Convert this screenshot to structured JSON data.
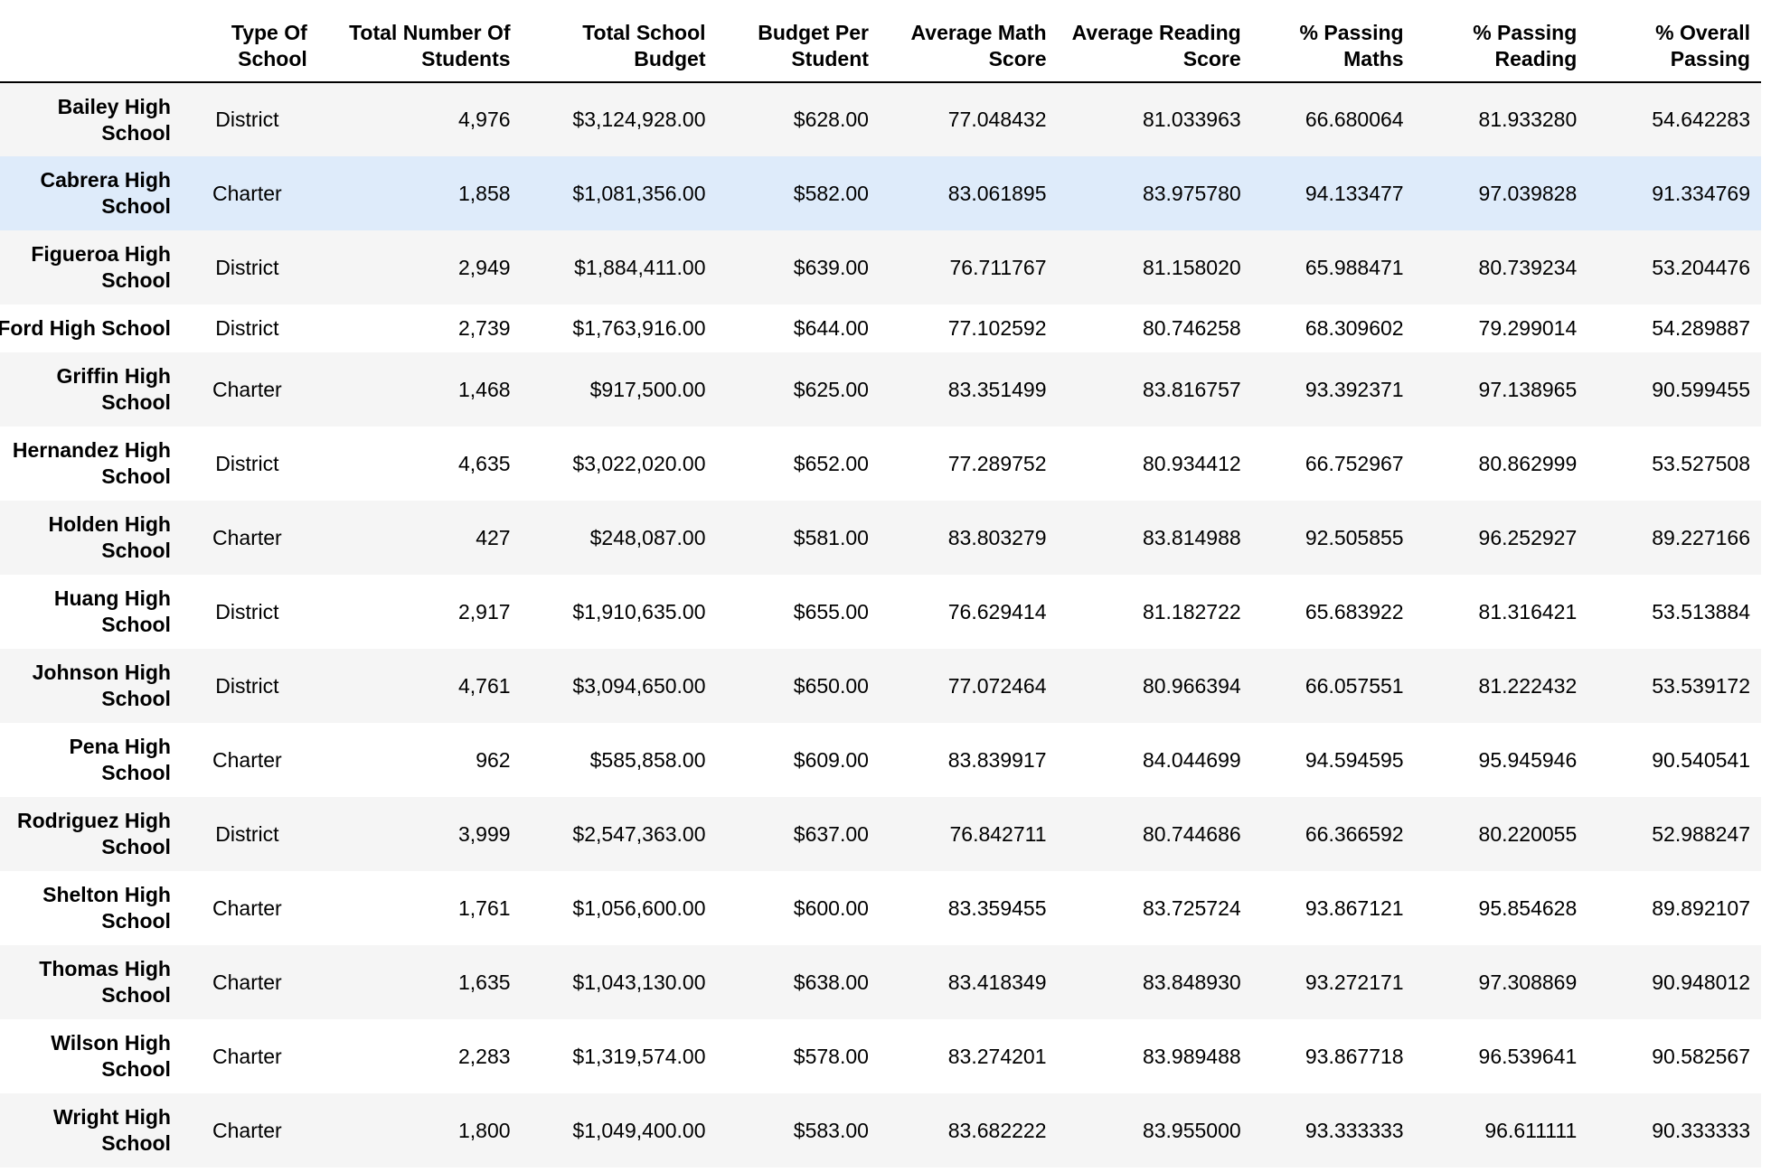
{
  "table": {
    "columns": [
      "",
      "Type Of School",
      "Total Number Of Students",
      "Total School Budget",
      "Budget Per Student",
      "Average Math Score",
      "Average Reading Score",
      "% Passing Maths",
      "% Passing Reading",
      "% Overall Passing"
    ],
    "rows": [
      {
        "school": "Bailey High School",
        "type": "District",
        "students": "4,976",
        "budget": "$3,124,928.00",
        "per_student": "$628.00",
        "math": "77.048432",
        "reading": "81.033963",
        "pass_math": "66.680064",
        "pass_reading": "81.933280",
        "overall": "54.642283"
      },
      {
        "school": "Cabrera High School",
        "type": "Charter",
        "students": "1,858",
        "budget": "$1,081,356.00",
        "per_student": "$582.00",
        "math": "83.061895",
        "reading": "83.975780",
        "pass_math": "94.133477",
        "pass_reading": "97.039828",
        "overall": "91.334769"
      },
      {
        "school": "Figueroa High School",
        "type": "District",
        "students": "2,949",
        "budget": "$1,884,411.00",
        "per_student": "$639.00",
        "math": "76.711767",
        "reading": "81.158020",
        "pass_math": "65.988471",
        "pass_reading": "80.739234",
        "overall": "53.204476"
      },
      {
        "school": "Ford High School",
        "type": "District",
        "students": "2,739",
        "budget": "$1,763,916.00",
        "per_student": "$644.00",
        "math": "77.102592",
        "reading": "80.746258",
        "pass_math": "68.309602",
        "pass_reading": "79.299014",
        "overall": "54.289887"
      },
      {
        "school": "Griffin High School",
        "type": "Charter",
        "students": "1,468",
        "budget": "$917,500.00",
        "per_student": "$625.00",
        "math": "83.351499",
        "reading": "83.816757",
        "pass_math": "93.392371",
        "pass_reading": "97.138965",
        "overall": "90.599455"
      },
      {
        "school": "Hernandez High School",
        "type": "District",
        "students": "4,635",
        "budget": "$3,022,020.00",
        "per_student": "$652.00",
        "math": "77.289752",
        "reading": "80.934412",
        "pass_math": "66.752967",
        "pass_reading": "80.862999",
        "overall": "53.527508"
      },
      {
        "school": "Holden High School",
        "type": "Charter",
        "students": "427",
        "budget": "$248,087.00",
        "per_student": "$581.00",
        "math": "83.803279",
        "reading": "83.814988",
        "pass_math": "92.505855",
        "pass_reading": "96.252927",
        "overall": "89.227166"
      },
      {
        "school": "Huang High School",
        "type": "District",
        "students": "2,917",
        "budget": "$1,910,635.00",
        "per_student": "$655.00",
        "math": "76.629414",
        "reading": "81.182722",
        "pass_math": "65.683922",
        "pass_reading": "81.316421",
        "overall": "53.513884"
      },
      {
        "school": "Johnson High School",
        "type": "District",
        "students": "4,761",
        "budget": "$3,094,650.00",
        "per_student": "$650.00",
        "math": "77.072464",
        "reading": "80.966394",
        "pass_math": "66.057551",
        "pass_reading": "81.222432",
        "overall": "53.539172"
      },
      {
        "school": "Pena High School",
        "type": "Charter",
        "students": "962",
        "budget": "$585,858.00",
        "per_student": "$609.00",
        "math": "83.839917",
        "reading": "84.044699",
        "pass_math": "94.594595",
        "pass_reading": "95.945946",
        "overall": "90.540541"
      },
      {
        "school": "Rodriguez High School",
        "type": "District",
        "students": "3,999",
        "budget": "$2,547,363.00",
        "per_student": "$637.00",
        "math": "76.842711",
        "reading": "80.744686",
        "pass_math": "66.366592",
        "pass_reading": "80.220055",
        "overall": "52.988247"
      },
      {
        "school": "Shelton High School",
        "type": "Charter",
        "students": "1,761",
        "budget": "$1,056,600.00",
        "per_student": "$600.00",
        "math": "83.359455",
        "reading": "83.725724",
        "pass_math": "93.867121",
        "pass_reading": "95.854628",
        "overall": "89.892107"
      },
      {
        "school": "Thomas High School",
        "type": "Charter",
        "students": "1,635",
        "budget": "$1,043,130.00",
        "per_student": "$638.00",
        "math": "83.418349",
        "reading": "83.848930",
        "pass_math": "93.272171",
        "pass_reading": "97.308869",
        "overall": "90.948012"
      },
      {
        "school": "Wilson High School",
        "type": "Charter",
        "students": "2,283",
        "budget": "$1,319,574.00",
        "per_student": "$578.00",
        "math": "83.274201",
        "reading": "83.989488",
        "pass_math": "93.867718",
        "pass_reading": "96.539641",
        "overall": "90.582567"
      },
      {
        "school": "Wright High School",
        "type": "Charter",
        "students": "1,800",
        "budget": "$1,049,400.00",
        "per_student": "$583.00",
        "math": "83.682222",
        "reading": "83.955000",
        "pass_math": "93.333333",
        "pass_reading": "96.611111",
        "overall": "90.333333"
      }
    ]
  },
  "colors": {
    "row_odd": "#f5f5f5",
    "row_even": "#ffffff",
    "row_hover": "#deebfa",
    "text": "#000000"
  }
}
